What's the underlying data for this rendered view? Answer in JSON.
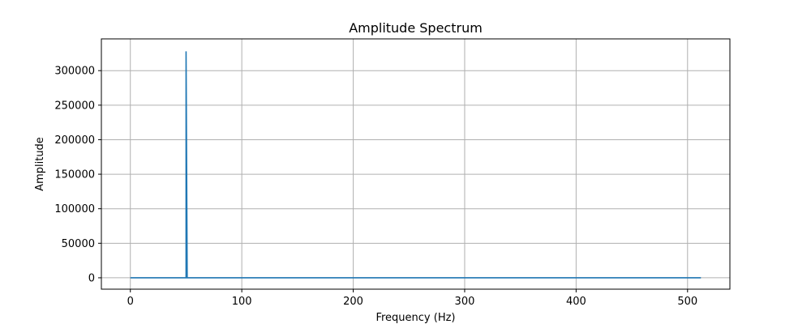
{
  "chart_data": {
    "type": "line",
    "title": "Amplitude Spectrum",
    "xlabel": "Frequency (Hz)",
    "ylabel": "Amplitude",
    "xlim": [
      -26,
      538
    ],
    "ylim": [
      -16500,
      346000
    ],
    "xticks": [
      0,
      100,
      200,
      300,
      400,
      500
    ],
    "yticks": [
      0,
      50000,
      100000,
      150000,
      200000,
      250000,
      300000
    ],
    "grid": true,
    "line_color": "#1f77b4",
    "grid_color": "#b0b0b0",
    "series": [
      {
        "x": [
          0,
          49,
          50,
          50,
          51,
          512
        ],
        "y": [
          0,
          0,
          0,
          328000,
          0,
          0
        ]
      }
    ]
  }
}
